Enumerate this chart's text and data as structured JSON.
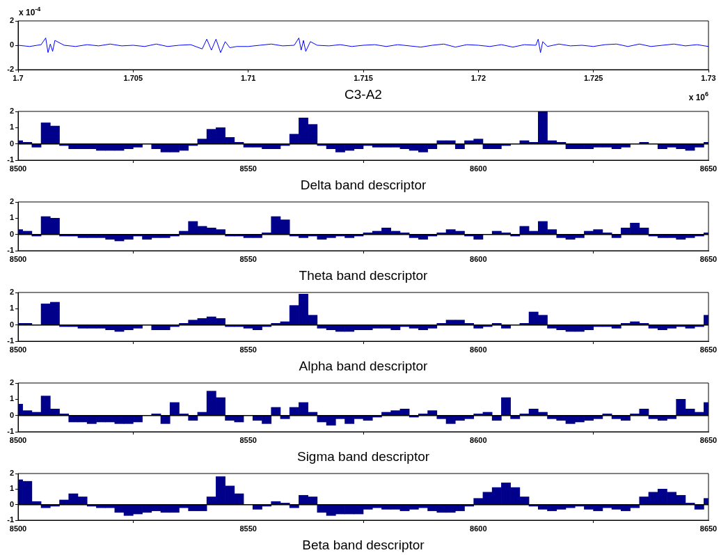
{
  "chart_data": [
    {
      "type": "line",
      "xlabel": "C3-A2",
      "color": "#0000ff",
      "xlim": [
        1.7,
        1.73
      ],
      "xticks": [
        1.7,
        1.705,
        1.71,
        1.715,
        1.72,
        1.725,
        1.73
      ],
      "ylim": [
        -2,
        2
      ],
      "yticks": [
        -2,
        0,
        2
      ],
      "annotations": [
        "x 10$^{-4}$",
        "x 10$^{6}$"
      ],
      "x": [
        1.7,
        1.7005,
        1.701,
        1.7012,
        1.7013,
        1.7014,
        1.7015,
        1.7016,
        1.702,
        1.7025,
        1.703,
        1.7035,
        1.704,
        1.7045,
        1.705,
        1.7055,
        1.706,
        1.7065,
        1.707,
        1.7075,
        1.708,
        1.7082,
        1.7084,
        1.7086,
        1.7088,
        1.709,
        1.7092,
        1.7095,
        1.71,
        1.7105,
        1.711,
        1.7115,
        1.712,
        1.7122,
        1.7123,
        1.7124,
        1.7125,
        1.7127,
        1.713,
        1.7135,
        1.714,
        1.7145,
        1.715,
        1.7155,
        1.716,
        1.7165,
        1.717,
        1.7175,
        1.718,
        1.7185,
        1.719,
        1.7195,
        1.72,
        1.7205,
        1.721,
        1.7215,
        1.722,
        1.7225,
        1.7226,
        1.7227,
        1.7228,
        1.723,
        1.7235,
        1.724,
        1.7245,
        1.725,
        1.7255,
        1.726,
        1.7265,
        1.727,
        1.7275,
        1.728,
        1.7285,
        1.729,
        1.7295,
        1.73
      ],
      "values": [
        0.0,
        -0.1,
        0.05,
        0.6,
        -0.6,
        0.1,
        -0.5,
        0.4,
        0.0,
        -0.1,
        0.05,
        -0.05,
        0.1,
        -0.05,
        0.0,
        -0.1,
        0.1,
        -0.1,
        0.0,
        0.05,
        -0.3,
        0.5,
        -0.4,
        0.5,
        -0.6,
        0.3,
        -0.2,
        -0.1,
        -0.1,
        0.0,
        0.1,
        -0.05,
        0.0,
        0.6,
        -0.4,
        0.4,
        -0.5,
        0.3,
        0.0,
        -0.05,
        0.05,
        -0.1,
        0.0,
        0.05,
        -0.1,
        0.05,
        -0.05,
        -0.15,
        0.0,
        0.1,
        -0.15,
        0.05,
        0.0,
        -0.1,
        0.05,
        -0.15,
        0.05,
        0.0,
        0.5,
        -0.6,
        0.3,
        -0.1,
        0.1,
        -0.05,
        0.0,
        -0.1,
        0.05,
        0.1,
        -0.1,
        0.1,
        -0.1,
        0.0,
        0.1,
        -0.05,
        0.05,
        -0.1
      ]
    },
    {
      "type": "bar",
      "xlabel": "Delta band descriptor",
      "color": "#00008b",
      "xlim": [
        8500,
        8650
      ],
      "xticks": [
        8500,
        8550,
        8600,
        8650
      ],
      "ylim": [
        -1,
        2
      ],
      "yticks": [
        -1,
        0,
        1,
        2
      ],
      "ref_lines": [
        {
          "axis": "y",
          "value": 0,
          "color": "#000000"
        }
      ],
      "x": [
        8500,
        8502,
        8504,
        8506,
        8508,
        8510,
        8512,
        8514,
        8516,
        8518,
        8520,
        8522,
        8524,
        8526,
        8528,
        8530,
        8532,
        8534,
        8536,
        8538,
        8540,
        8542,
        8544,
        8546,
        8548,
        8550,
        8552,
        8554,
        8556,
        8558,
        8560,
        8562,
        8564,
        8566,
        8568,
        8570,
        8572,
        8574,
        8576,
        8578,
        8580,
        8582,
        8584,
        8586,
        8588,
        8590,
        8592,
        8594,
        8596,
        8598,
        8600,
        8602,
        8604,
        8606,
        8608,
        8610,
        8612,
        8614,
        8616,
        8618,
        8620,
        8622,
        8624,
        8626,
        8628,
        8630,
        8632,
        8634,
        8636,
        8638,
        8640,
        8642,
        8644,
        8646,
        8648,
        8650
      ],
      "values": [
        0.2,
        0.1,
        -0.2,
        1.3,
        1.1,
        -0.1,
        -0.3,
        -0.3,
        -0.3,
        -0.4,
        -0.4,
        -0.4,
        -0.3,
        -0.2,
        0.0,
        -0.3,
        -0.5,
        -0.5,
        -0.4,
        -0.1,
        0.3,
        0.9,
        1.0,
        0.4,
        0.1,
        -0.2,
        -0.2,
        -0.3,
        -0.3,
        -0.1,
        0.6,
        1.6,
        1.2,
        -0.1,
        -0.3,
        -0.5,
        -0.4,
        -0.3,
        -0.1,
        -0.2,
        -0.2,
        -0.2,
        -0.3,
        -0.4,
        -0.5,
        -0.3,
        0.2,
        0.2,
        -0.3,
        0.2,
        0.3,
        -0.3,
        -0.3,
        -0.1,
        0.0,
        0.2,
        0.1,
        2.0,
        0.2,
        0.1,
        -0.3,
        -0.3,
        -0.3,
        -0.2,
        -0.2,
        -0.3,
        -0.2,
        0.0,
        0.1,
        0.0,
        -0.3,
        -0.2,
        -0.3,
        -0.4,
        -0.2,
        0.1
      ]
    },
    {
      "type": "bar",
      "xlabel": "Theta band descriptor",
      "color": "#00008b",
      "xlim": [
        8500,
        8650
      ],
      "xticks": [
        8500,
        8550,
        8600,
        8650
      ],
      "ylim": [
        -1,
        2
      ],
      "yticks": [
        -1,
        0,
        1,
        2
      ],
      "ref_lines": [
        {
          "axis": "y",
          "value": 0,
          "color": "#000000"
        }
      ],
      "x": [
        8500,
        8502,
        8504,
        8506,
        8508,
        8510,
        8512,
        8514,
        8516,
        8518,
        8520,
        8522,
        8524,
        8526,
        8528,
        8530,
        8532,
        8534,
        8536,
        8538,
        8540,
        8542,
        8544,
        8546,
        8548,
        8550,
        8552,
        8554,
        8556,
        8558,
        8560,
        8562,
        8564,
        8566,
        8568,
        8570,
        8572,
        8574,
        8576,
        8578,
        8580,
        8582,
        8584,
        8586,
        8588,
        8590,
        8592,
        8594,
        8596,
        8598,
        8600,
        8602,
        8604,
        8606,
        8608,
        8610,
        8612,
        8614,
        8616,
        8618,
        8620,
        8622,
        8624,
        8626,
        8628,
        8630,
        8632,
        8634,
        8636,
        8638,
        8640,
        8642,
        8644,
        8646,
        8648,
        8650
      ],
      "values": [
        0.3,
        0.2,
        -0.1,
        1.1,
        1.0,
        -0.1,
        -0.1,
        -0.2,
        -0.2,
        -0.2,
        -0.3,
        -0.4,
        -0.3,
        -0.1,
        -0.3,
        -0.2,
        -0.2,
        -0.1,
        0.2,
        0.8,
        0.5,
        0.4,
        0.3,
        -0.1,
        -0.1,
        -0.2,
        -0.2,
        0.1,
        1.1,
        0.9,
        -0.1,
        -0.2,
        -0.1,
        -0.3,
        -0.2,
        -0.1,
        -0.2,
        -0.1,
        0.1,
        0.2,
        0.4,
        0.2,
        0.1,
        -0.2,
        -0.3,
        -0.1,
        0.1,
        0.3,
        0.2,
        -0.1,
        -0.3,
        0.0,
        0.2,
        0.1,
        -0.1,
        0.5,
        0.2,
        0.8,
        0.3,
        -0.2,
        -0.3,
        -0.2,
        0.2,
        0.3,
        0.1,
        -0.2,
        0.4,
        0.7,
        0.4,
        -0.1,
        -0.2,
        -0.2,
        -0.3,
        -0.2,
        -0.1,
        0.1
      ]
    },
    {
      "type": "bar",
      "xlabel": "Alpha band descriptor",
      "color": "#00008b",
      "xlim": [
        8500,
        8650
      ],
      "xticks": [
        8500,
        8550,
        8600,
        8650
      ],
      "ylim": [
        -1,
        2
      ],
      "yticks": [
        -1,
        0,
        1,
        2
      ],
      "ref_lines": [
        {
          "axis": "y",
          "value": 0,
          "color": "#000000"
        }
      ],
      "x": [
        8500,
        8502,
        8504,
        8506,
        8508,
        8510,
        8512,
        8514,
        8516,
        8518,
        8520,
        8522,
        8524,
        8526,
        8528,
        8530,
        8532,
        8534,
        8536,
        8538,
        8540,
        8542,
        8544,
        8546,
        8548,
        8550,
        8552,
        8554,
        8556,
        8558,
        8560,
        8562,
        8564,
        8566,
        8568,
        8570,
        8572,
        8574,
        8576,
        8578,
        8580,
        8582,
        8584,
        8586,
        8588,
        8590,
        8592,
        8594,
        8596,
        8598,
        8600,
        8602,
        8604,
        8606,
        8608,
        8610,
        8612,
        8614,
        8616,
        8618,
        8620,
        8622,
        8624,
        8626,
        8628,
        8630,
        8632,
        8634,
        8636,
        8638,
        8640,
        8642,
        8644,
        8646,
        8648,
        8650
      ],
      "values": [
        0.1,
        0.1,
        0.0,
        1.3,
        1.4,
        -0.1,
        -0.1,
        -0.2,
        -0.2,
        -0.2,
        -0.3,
        -0.4,
        -0.3,
        -0.2,
        0.0,
        -0.3,
        -0.3,
        -0.1,
        0.1,
        0.3,
        0.4,
        0.5,
        0.4,
        -0.1,
        -0.1,
        -0.2,
        -0.3,
        -0.1,
        0.1,
        0.2,
        1.2,
        1.9,
        0.6,
        -0.2,
        -0.3,
        -0.4,
        -0.4,
        -0.3,
        -0.3,
        -0.2,
        -0.2,
        -0.3,
        -0.1,
        -0.2,
        -0.3,
        -0.2,
        0.1,
        0.3,
        0.3,
        0.1,
        -0.2,
        -0.1,
        0.1,
        -0.2,
        0.0,
        0.1,
        0.8,
        0.6,
        -0.2,
        -0.3,
        -0.4,
        -0.4,
        -0.3,
        -0.1,
        -0.1,
        -0.2,
        0.1,
        0.2,
        0.1,
        -0.2,
        -0.3,
        -0.2,
        -0.1,
        -0.2,
        -0.1,
        0.6
      ]
    },
    {
      "type": "bar",
      "xlabel": "Sigma band descriptor",
      "color": "#00008b",
      "xlim": [
        8500,
        8650
      ],
      "xticks": [
        8500,
        8550,
        8600,
        8650
      ],
      "ylim": [
        -1,
        2
      ],
      "yticks": [
        -1,
        0,
        1,
        2
      ],
      "ref_lines": [
        {
          "axis": "y",
          "value": 0,
          "color": "#000000"
        }
      ],
      "x": [
        8500,
        8502,
        8504,
        8506,
        8508,
        8510,
        8512,
        8514,
        8516,
        8518,
        8520,
        8522,
        8524,
        8526,
        8528,
        8530,
        8532,
        8534,
        8536,
        8538,
        8540,
        8542,
        8544,
        8546,
        8548,
        8550,
        8552,
        8554,
        8556,
        8558,
        8560,
        8562,
        8564,
        8566,
        8568,
        8570,
        8572,
        8574,
        8576,
        8578,
        8580,
        8582,
        8584,
        8586,
        8588,
        8590,
        8592,
        8594,
        8596,
        8598,
        8600,
        8602,
        8604,
        8606,
        8608,
        8610,
        8612,
        8614,
        8616,
        8618,
        8620,
        8622,
        8624,
        8626,
        8628,
        8630,
        8632,
        8634,
        8636,
        8638,
        8640,
        8642,
        8644,
        8646,
        8648,
        8650
      ],
      "values": [
        0.7,
        0.3,
        0.2,
        1.2,
        0.4,
        0.1,
        -0.4,
        -0.4,
        -0.5,
        -0.4,
        -0.4,
        -0.5,
        -0.5,
        -0.4,
        0.0,
        0.1,
        -0.5,
        0.8,
        0.1,
        -0.3,
        0.2,
        1.5,
        1.1,
        -0.3,
        -0.4,
        0.0,
        -0.3,
        -0.5,
        0.5,
        -0.2,
        0.5,
        0.8,
        0.2,
        -0.4,
        -0.6,
        -0.2,
        -0.5,
        -0.2,
        -0.3,
        -0.1,
        0.2,
        0.3,
        0.4,
        -0.1,
        0.1,
        0.3,
        -0.2,
        -0.5,
        -0.3,
        -0.2,
        0.1,
        0.2,
        -0.3,
        1.1,
        -0.2,
        0.1,
        0.4,
        0.2,
        -0.2,
        -0.3,
        -0.5,
        -0.4,
        -0.3,
        -0.2,
        0.1,
        -0.2,
        -0.3,
        0.1,
        0.4,
        -0.2,
        -0.3,
        -0.2,
        1.0,
        0.4,
        0.2,
        0.8
      ]
    },
    {
      "type": "bar",
      "xlabel": "Beta band descriptor",
      "color": "#00008b",
      "xlim": [
        8500,
        8650
      ],
      "xticks": [
        8500,
        8550,
        8600,
        8650
      ],
      "ylim": [
        -1,
        2
      ],
      "yticks": [
        -1,
        0,
        1,
        2
      ],
      "ref_lines": [
        {
          "axis": "y",
          "value": 0,
          "color": "#000000"
        }
      ],
      "x": [
        8500,
        8502,
        8504,
        8506,
        8508,
        8510,
        8512,
        8514,
        8516,
        8518,
        8520,
        8522,
        8524,
        8526,
        8528,
        8530,
        8532,
        8534,
        8536,
        8538,
        8540,
        8542,
        8544,
        8546,
        8548,
        8550,
        8552,
        8554,
        8556,
        8558,
        8560,
        8562,
        8564,
        8566,
        8568,
        8570,
        8572,
        8574,
        8576,
        8578,
        8580,
        8582,
        8584,
        8586,
        8588,
        8590,
        8592,
        8594,
        8596,
        8598,
        8600,
        8602,
        8604,
        8606,
        8608,
        8610,
        8612,
        8614,
        8616,
        8618,
        8620,
        8622,
        8624,
        8626,
        8628,
        8630,
        8632,
        8634,
        8636,
        8638,
        8640,
        8642,
        8644,
        8646,
        8648,
        8650
      ],
      "values": [
        1.6,
        1.5,
        0.2,
        -0.2,
        -0.1,
        0.3,
        0.7,
        0.5,
        -0.1,
        -0.2,
        -0.2,
        -0.5,
        -0.7,
        -0.6,
        -0.5,
        -0.4,
        -0.5,
        -0.5,
        -0.2,
        -0.4,
        -0.4,
        0.5,
        1.8,
        1.2,
        0.7,
        0.0,
        -0.3,
        -0.1,
        0.2,
        0.1,
        -0.2,
        0.6,
        0.5,
        -0.5,
        -0.7,
        -0.6,
        -0.6,
        -0.6,
        -0.3,
        -0.2,
        -0.3,
        -0.3,
        -0.4,
        -0.3,
        -0.2,
        -0.4,
        -0.5,
        -0.5,
        -0.4,
        -0.1,
        0.4,
        0.8,
        1.1,
        1.4,
        1.1,
        0.5,
        -0.1,
        -0.3,
        -0.4,
        -0.3,
        -0.2,
        -0.1,
        -0.3,
        -0.4,
        -0.2,
        -0.3,
        -0.4,
        -0.2,
        0.5,
        0.8,
        1.0,
        0.8,
        0.6,
        0.1,
        -0.3,
        0.4
      ]
    }
  ]
}
